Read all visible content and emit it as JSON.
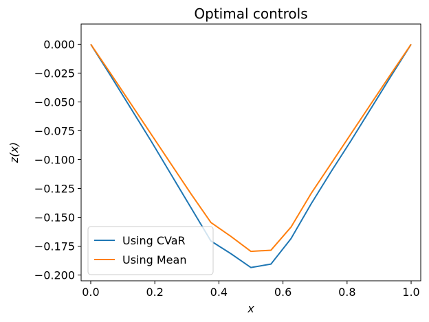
{
  "chart_data": {
    "type": "line",
    "title": "Optimal controls",
    "xlabel": "x",
    "ylabel": "z(x)",
    "xlim": [
      -0.03,
      1.03
    ],
    "ylim": [
      -0.205,
      0.0175
    ],
    "xticks": [
      0.0,
      0.2,
      0.4,
      0.6,
      0.8,
      1.0
    ],
    "xtick_labels": [
      "0.0",
      "0.2",
      "0.4",
      "0.6",
      "0.8",
      "1.0"
    ],
    "yticks": [
      0.0,
      -0.025,
      -0.05,
      -0.075,
      -0.1,
      -0.125,
      -0.15,
      -0.175,
      -0.2
    ],
    "ytick_labels": [
      "0.000",
      "−0.025",
      "−0.050",
      "−0.075",
      "−0.100",
      "−0.125",
      "−0.150",
      "−0.175",
      "−0.200"
    ],
    "grid": false,
    "legend_position": "lower-left",
    "series": [
      {
        "name": "Using CVaR",
        "color": "#1f77b4",
        "x": [
          0.0,
          0.0625,
          0.125,
          0.1875,
          0.25,
          0.3125,
          0.375,
          0.4375,
          0.5,
          0.5625,
          0.625,
          0.6875,
          0.75,
          0.8125,
          0.875,
          0.9375,
          1.0
        ],
        "y": [
          0.0,
          -0.0275,
          -0.0555,
          -0.0835,
          -0.1125,
          -0.1415,
          -0.1705,
          -0.1815,
          -0.1935,
          -0.1905,
          -0.1685,
          -0.1385,
          -0.1105,
          -0.0835,
          -0.0555,
          -0.0275,
          0.0
        ]
      },
      {
        "name": "Using Mean",
        "color": "#ff7f0e",
        "x": [
          0.0,
          0.0625,
          0.125,
          0.1875,
          0.25,
          0.3125,
          0.375,
          0.4375,
          0.5,
          0.5625,
          0.625,
          0.6875,
          0.75,
          0.8125,
          0.875,
          0.9375,
          1.0
        ],
        "y": [
          0.0,
          -0.0255,
          -0.0515,
          -0.0775,
          -0.1035,
          -0.1295,
          -0.1545,
          -0.1665,
          -0.1795,
          -0.1785,
          -0.1585,
          -0.1295,
          -0.1035,
          -0.0775,
          -0.0515,
          -0.0255,
          0.0
        ]
      }
    ]
  }
}
